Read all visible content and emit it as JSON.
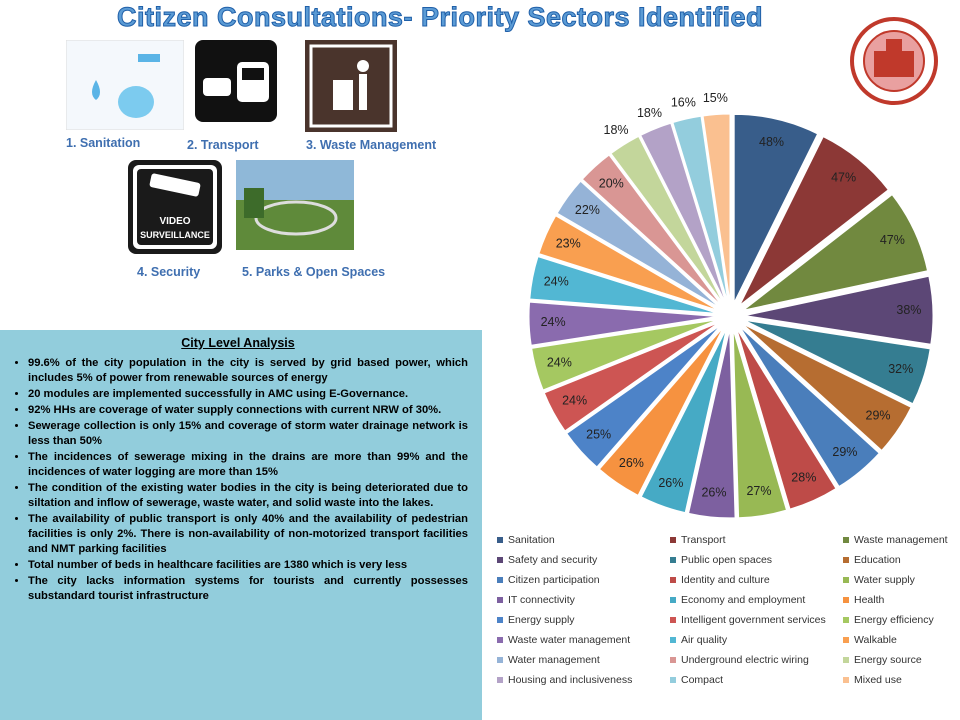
{
  "header": {
    "title": "Citizen Consultations- Priority Sectors Identified"
  },
  "sectors": [
    "1. Sanitation",
    "2. Transport",
    "3. Waste Management",
    "4. Security",
    "5. Parks & Open Spaces"
  ],
  "analysis": {
    "title": "City Level Analysis",
    "bullets": [
      "99.6% of the city population in the city is served by grid based power, which includes 5% of power from renewable sources of energy",
      "20 modules are implemented successfully in AMC using E-Governance.",
      "92% HHs are coverage of water supply connections with current NRW of 30%.",
      "Sewerage collection is only 15% and coverage of storm water drainage network is less than 50%",
      "The incidences of sewerage mixing in the drains are more than 99% and the incidences of water logging are more than 15%",
      "The condition of the existing water bodies in the city is being deteriorated due to siltation and inflow of sewerage, waste water, and solid waste into the lakes.",
      "The availability of public transport is only 40% and the availability of pedestrian facilities is only 2%. There is non-availability of non-motorized transport facilities and NMT parking facilities",
      "Total number of beds in healthcare facilities are 1380 which is very less",
      "The city lacks information systems for tourists and currently possesses substandard tourist infrastructure"
    ]
  },
  "chart_data": {
    "type": "pie",
    "categories": [
      "Sanitation",
      "Transport",
      "Waste management",
      "Safety and security",
      "Public open spaces",
      "Education",
      "Citizen participation",
      "Identity and culture",
      "Water supply",
      "IT connectivity",
      "Economy and employment",
      "Health",
      "Energy supply",
      "Intelligent government services",
      "Energy efficiency",
      "Waste water management",
      "Air quality",
      "Walkable",
      "Water management",
      "Underground electric wiring",
      "Energy source",
      "Housing and inclusiveness",
      "Compact",
      "Mixed use"
    ],
    "values": [
      48,
      47,
      47,
      38,
      32,
      29,
      29,
      28,
      27,
      26,
      26,
      26,
      25,
      24,
      24,
      24,
      24,
      23,
      22,
      20,
      18,
      18,
      16,
      15
    ],
    "value_labels": [
      "48%",
      "47%",
      "47%",
      "38%",
      "32%",
      "29%",
      "29%",
      "28%",
      "27%",
      "26%",
      "26%",
      "26%",
      "25%",
      "24%",
      "24%",
      "24%",
      "24%",
      "23%",
      "22%",
      "20%",
      "18%",
      "18%",
      "16%",
      "15%"
    ],
    "colors": [
      "#385d8a",
      "#8c3836",
      "#71893f",
      "#5c4776",
      "#357d91",
      "#b66d31",
      "#4a7ebb",
      "#be4b48",
      "#98b954",
      "#7d60a0",
      "#46aac5",
      "#f69240",
      "#4d83c8",
      "#cd5553",
      "#a5c861",
      "#8a6bae",
      "#52b7d3",
      "#f99f50",
      "#95b3d7",
      "#d99694",
      "#c3d69b",
      "#b3a2c7",
      "#93cddd",
      "#fac090"
    ],
    "legend": "bottom"
  }
}
